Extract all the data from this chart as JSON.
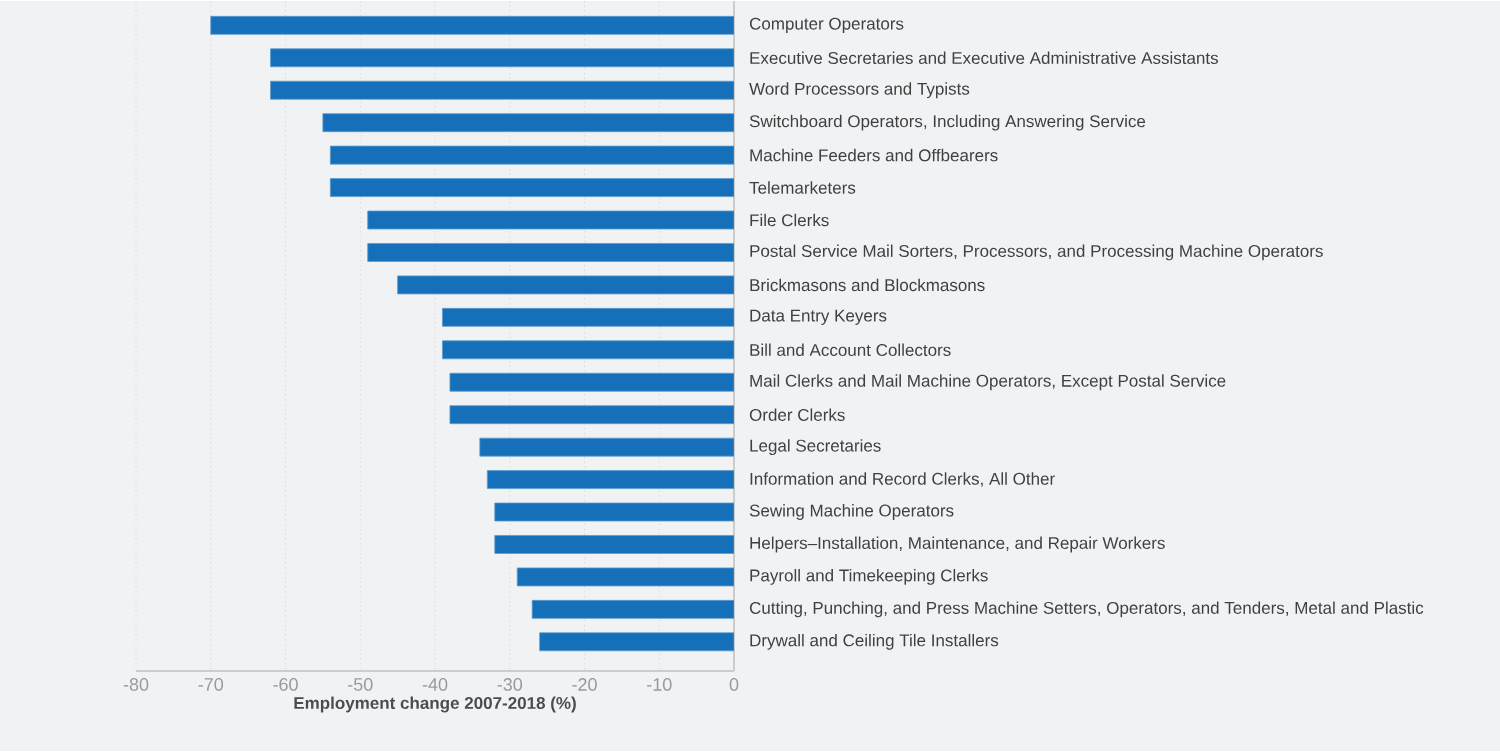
{
  "chart_data": {
    "type": "bar",
    "orientation": "horizontal",
    "xlabel": "Employment change 2007-2018 (%)",
    "categories": [
      "Computer Operators",
      "Executive Secretaries and Executive Administrative Assistants",
      "Word Processors and Typists",
      "Switchboard Operators, Including Answering Service",
      "Machine Feeders and Offbearers",
      "Telemarketers",
      "File Clerks",
      "Postal Service Mail Sorters, Processors, and Processing Machine Operators",
      "Brickmasons and Blockmasons",
      "Data Entry Keyers",
      "Bill and Account Collectors",
      "Mail Clerks and Mail Machine Operators, Except Postal Service",
      "Order Clerks",
      "Legal Secretaries",
      "Information and Record Clerks, All Other",
      "Sewing Machine Operators",
      "Helpers–Installation, Maintenance, and Repair Workers",
      "Payroll and Timekeeping Clerks",
      "Cutting, Punching, and Press Machine Setters, Operators, and Tenders, Metal and Plastic",
      "Drywall and Ceiling Tile Installers"
    ],
    "values": [
      -70,
      -62,
      -62,
      -55,
      -54,
      -54,
      -49,
      -49,
      -45,
      -39,
      -39,
      -38,
      -38,
      -34,
      -33,
      -32,
      -32,
      -29,
      -27,
      -26
    ],
    "color": "#1570b9",
    "xlim": [
      -80,
      0
    ],
    "xticks": [
      -80,
      -70,
      -60,
      -50,
      -40,
      -30,
      -20,
      -10,
      0
    ],
    "grid": "x"
  }
}
